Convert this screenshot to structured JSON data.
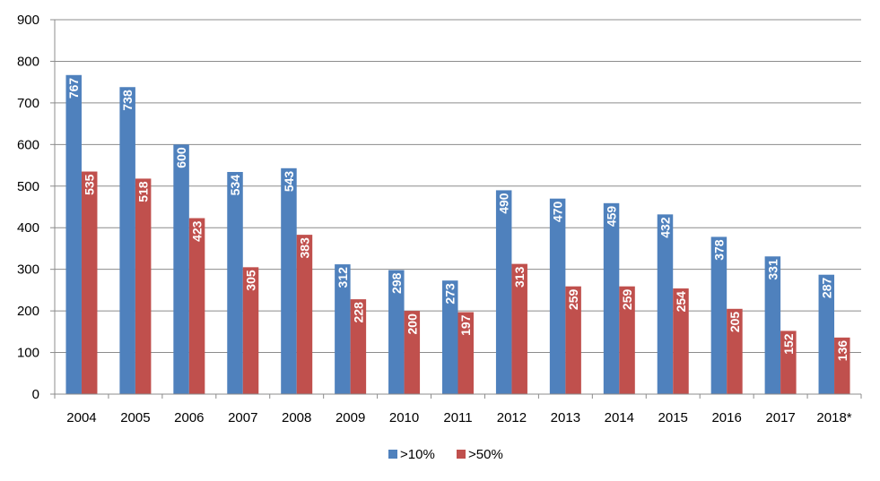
{
  "chart_data": {
    "type": "bar",
    "title": "",
    "xlabel": "",
    "ylabel": "",
    "categories": [
      "2004",
      "2005",
      "2006",
      "2007",
      "2008",
      "2009",
      "2010",
      "2011",
      "2012",
      "2013",
      "2014",
      "2015",
      "2016",
      "2017",
      "2018*"
    ],
    "series": [
      {
        "name": ">10%",
        "color": "#4f81bd",
        "values": [
          767,
          738,
          600,
          534,
          543,
          312,
          298,
          273,
          490,
          470,
          459,
          432,
          378,
          331,
          287
        ]
      },
      {
        "name": ">50%",
        "color": "#c0504d",
        "values": [
          535,
          518,
          423,
          305,
          383,
          228,
          200,
          197,
          313,
          259,
          259,
          254,
          205,
          152,
          136
        ]
      }
    ],
    "ylim": [
      0,
      900
    ],
    "yticks": [
      "0",
      "100",
      "200",
      "300",
      "400",
      "500",
      "600",
      "700",
      "800",
      "900"
    ],
    "grid": true,
    "legend": "bottom",
    "data_labels": "inside-end-rotated"
  }
}
